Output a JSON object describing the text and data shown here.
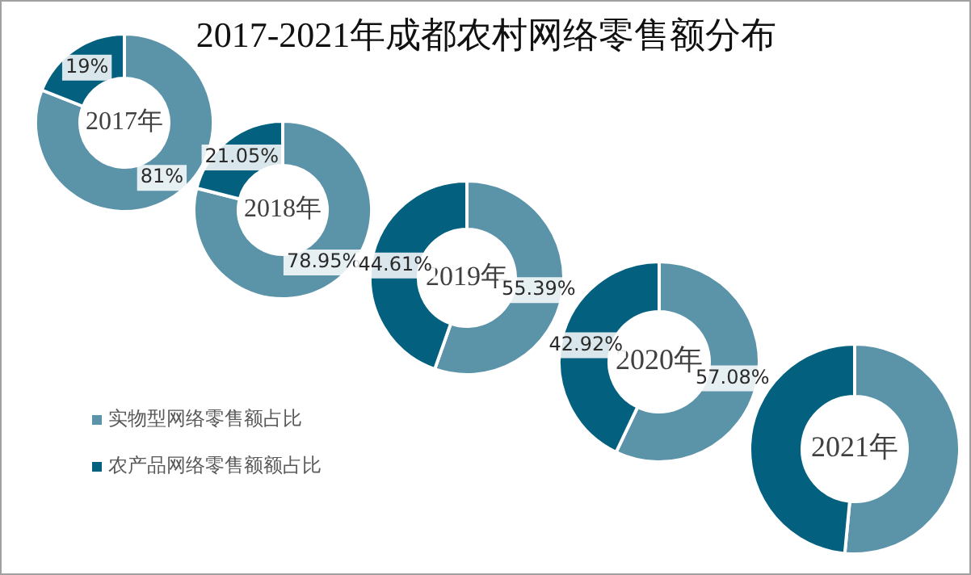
{
  "chart_data": [
    {
      "type": "other",
      "title": "2017-2021年成都农村网络零售额分布"
    },
    {
      "type": "donut",
      "title": "2017年",
      "values": [
        81,
        19
      ],
      "colors": [
        "#5b93a9",
        "#03617f"
      ],
      "value_labels": [
        "81%",
        "19%"
      ]
    },
    {
      "type": "donut",
      "title": "2018年",
      "values": [
        78.95,
        21.05
      ],
      "colors": [
        "#5b93a9",
        "#03617f"
      ],
      "value_labels": [
        "78.95%",
        "21.05%"
      ]
    },
    {
      "type": "donut",
      "title": "2019年",
      "values": [
        55.39,
        44.61
      ],
      "colors": [
        "#5b93a9",
        "#03617f"
      ],
      "value_labels": [
        "55.39%",
        "44.61%"
      ]
    },
    {
      "type": "donut",
      "title": "2020年",
      "values": [
        57.08,
        42.92
      ],
      "colors": [
        "#5b93a9",
        "#03617f"
      ],
      "value_labels": [
        "57.08%",
        "42.92%"
      ]
    },
    {
      "type": "donut",
      "title": "2021年",
      "categories": [
        "实物型网络零售额占比",
        "农产品网络零售额额占比"
      ],
      "values": [
        51.5,
        48.5
      ],
      "colors": [
        "#5b93a9",
        "#03617f"
      ],
      "legend": "left"
    }
  ]
}
